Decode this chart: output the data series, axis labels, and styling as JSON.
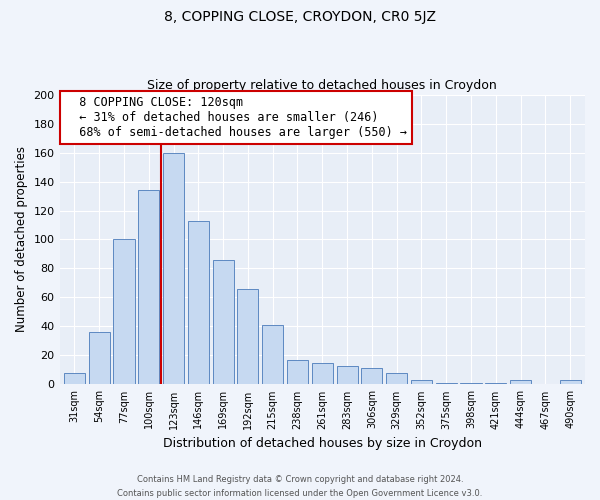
{
  "title1": "8, COPPING CLOSE, CROYDON, CR0 5JZ",
  "title2": "Size of property relative to detached houses in Croydon",
  "xlabel": "Distribution of detached houses by size in Croydon",
  "ylabel": "Number of detached properties",
  "footer1": "Contains HM Land Registry data © Crown copyright and database right 2024.",
  "footer2": "Contains public sector information licensed under the Open Government Licence v3.0.",
  "bar_labels": [
    "31sqm",
    "54sqm",
    "77sqm",
    "100sqm",
    "123sqm",
    "146sqm",
    "169sqm",
    "192sqm",
    "215sqm",
    "238sqm",
    "261sqm",
    "283sqm",
    "306sqm",
    "329sqm",
    "352sqm",
    "375sqm",
    "398sqm",
    "421sqm",
    "444sqm",
    "467sqm",
    "490sqm"
  ],
  "bar_values": [
    8,
    36,
    100,
    134,
    160,
    113,
    86,
    66,
    41,
    17,
    15,
    13,
    11,
    8,
    3,
    1,
    1,
    1,
    3,
    0,
    3
  ],
  "bar_color": "#c6d9f1",
  "bar_edge_color": "#4a7aba",
  "vline_x": 3.5,
  "vline_color": "#cc0000",
  "annotation_title": "8 COPPING CLOSE: 120sqm",
  "annotation_line1": "← 31% of detached houses are smaller (246)",
  "annotation_line2": "68% of semi-detached houses are larger (550) →",
  "annotation_box_color": "#ffffff",
  "annotation_box_edge_color": "#cc0000",
  "ylim": [
    0,
    200
  ],
  "yticks": [
    0,
    20,
    40,
    60,
    80,
    100,
    120,
    140,
    160,
    180,
    200
  ],
  "bg_color": "#e8eef7",
  "plot_bg_color": "#e8eef7",
  "grid_color": "#ffffff",
  "title1_fontsize": 10,
  "title2_fontsize": 9,
  "xlabel_fontsize": 9,
  "ylabel_fontsize": 8.5,
  "annot_fontsize": 8.5
}
